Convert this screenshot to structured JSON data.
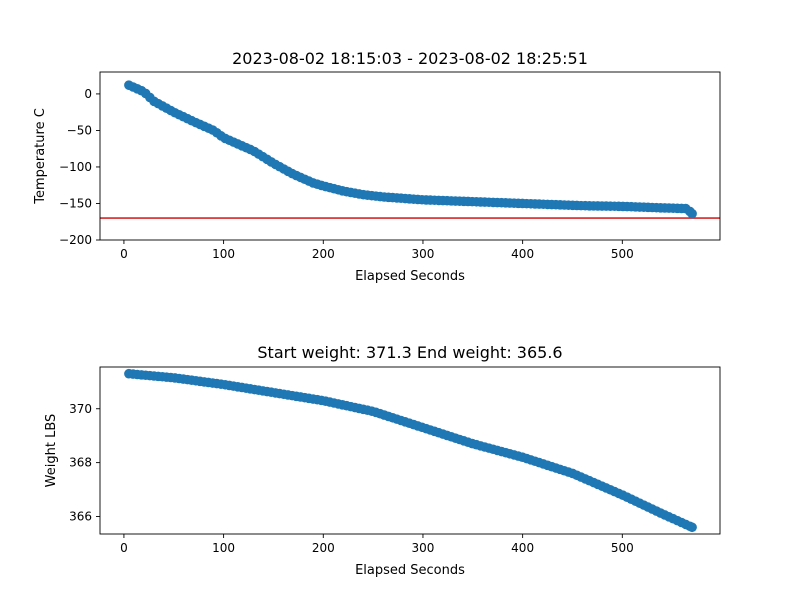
{
  "chart_data": [
    {
      "type": "scatter",
      "title": "2023-08-02 18:15:03 - 2023-08-02 18:25:51",
      "xlabel": "Elapsed Seconds",
      "ylabel": "Temperature C",
      "xlim": [
        -24,
        598
      ],
      "ylim": [
        -200,
        30
      ],
      "xticks": [
        0,
        100,
        200,
        300,
        400,
        500
      ],
      "yticks": [
        -200,
        -150,
        -100,
        -50,
        0
      ],
      "ytick_labels": [
        "−200",
        "−150",
        "−100",
        "−50",
        "0"
      ],
      "marker_color": "#1f77b4",
      "reference_line": {
        "y": -170,
        "color": "#d62728"
      },
      "points_x": [
        5,
        570
      ],
      "curve": [
        [
          5,
          12
        ],
        [
          20,
          3
        ],
        [
          30,
          -10
        ],
        [
          50,
          -25
        ],
        [
          70,
          -38
        ],
        [
          90,
          -50
        ],
        [
          100,
          -60
        ],
        [
          130,
          -78
        ],
        [
          150,
          -95
        ],
        [
          170,
          -110
        ],
        [
          190,
          -122
        ],
        [
          200,
          -126
        ],
        [
          220,
          -133
        ],
        [
          240,
          -138
        ],
        [
          260,
          -141
        ],
        [
          280,
          -143
        ],
        [
          300,
          -145
        ],
        [
          340,
          -147
        ],
        [
          380,
          -149
        ],
        [
          420,
          -151
        ],
        [
          460,
          -153
        ],
        [
          500,
          -154
        ],
        [
          540,
          -156
        ],
        [
          565,
          -157
        ],
        [
          570,
          -164
        ]
      ]
    },
    {
      "type": "scatter",
      "title": "Start weight: 371.3 End weight: 365.6",
      "xlabel": "Elapsed Seconds",
      "ylabel": "Weight LBS",
      "xlim": [
        -24,
        598
      ],
      "ylim": [
        365.35,
        371.55
      ],
      "xticks": [
        0,
        100,
        200,
        300,
        400,
        500
      ],
      "yticks": [
        366,
        368,
        370
      ],
      "ytick_labels": [
        "366",
        "368",
        "370"
      ],
      "marker_color": "#1f77b4",
      "points_x": [
        5,
        570
      ],
      "curve": [
        [
          5,
          371.3
        ],
        [
          50,
          371.15
        ],
        [
          100,
          370.9
        ],
        [
          150,
          370.6
        ],
        [
          200,
          370.3
        ],
        [
          250,
          369.9
        ],
        [
          300,
          369.3
        ],
        [
          350,
          368.7
        ],
        [
          400,
          368.2
        ],
        [
          450,
          367.6
        ],
        [
          500,
          366.8
        ],
        [
          540,
          366.1
        ],
        [
          570,
          365.6
        ]
      ]
    }
  ]
}
